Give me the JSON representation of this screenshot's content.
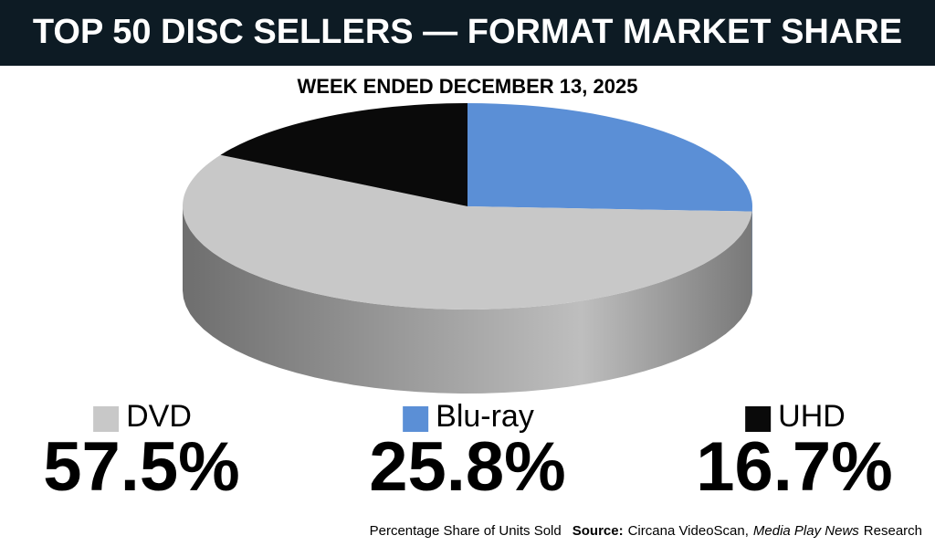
{
  "chart_data": {
    "type": "pie",
    "title": "TOP 50 DISC SELLERS — FORMAT MARKET SHARE",
    "subtitle": "WEEK ENDED DECEMBER 13, 2025",
    "categories": [
      "Blu-ray",
      "DVD",
      "UHD"
    ],
    "values": [
      25.8,
      57.5,
      16.7
    ],
    "value_labels": [
      "25.8%",
      "57.5%",
      "16.7%"
    ],
    "colors": [
      "#5b8fd6",
      "#c8c8c8",
      "#0a0a0a"
    ],
    "footnote": {
      "note": "Percentage Share of Units Sold",
      "source_label": "Source:",
      "source": "Circana VideoScan,",
      "publication": "Media Play News",
      "suffix": "Research"
    }
  }
}
